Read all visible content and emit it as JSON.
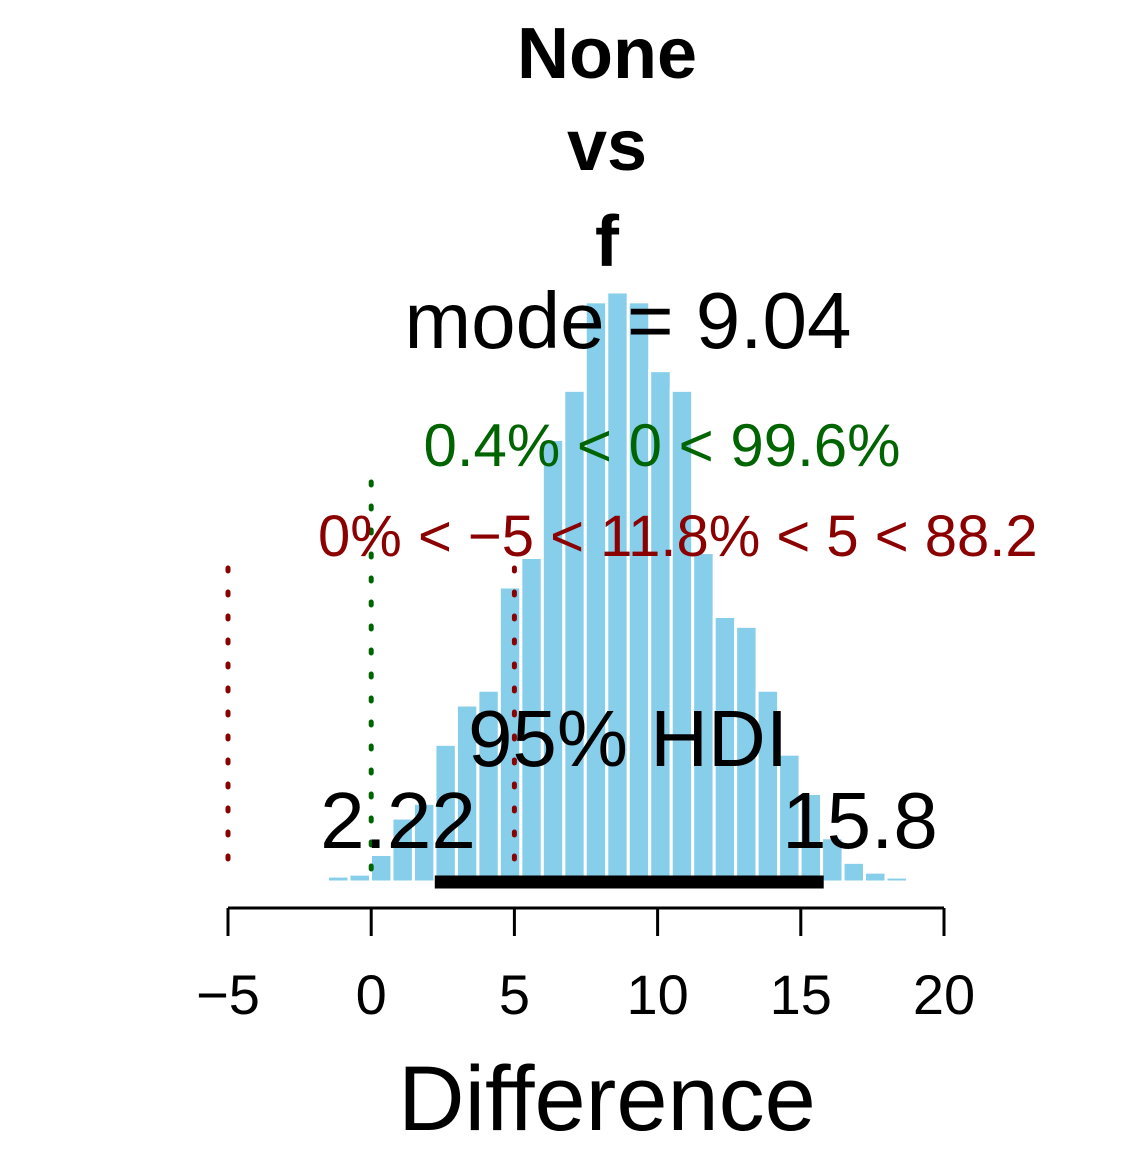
{
  "chart_data": {
    "type": "bar",
    "title_lines": [
      "None",
      "vs",
      "f"
    ],
    "mode_label": "mode = 9.04",
    "rope_zero_label": "0.4% < 0 < 99.6%",
    "rope_band_label": "0% < −5 < 11.8% < 5 < 88.2",
    "hdi_label": "95% HDI",
    "hdi_low_label": "2.22",
    "hdi_high_label": "15.8",
    "hdi": [
      2.22,
      15.8
    ],
    "comp_val": 0,
    "rope": [
      -5,
      5
    ],
    "xlabel": "Difference",
    "xlim": [
      -5,
      20
    ],
    "xticks": [
      -5,
      0,
      5,
      10,
      15,
      20
    ],
    "xtick_labels": [
      "−5",
      "0",
      "5",
      "10",
      "15",
      "20"
    ],
    "bin_width": 0.75,
    "bin_centers": [
      -1.9,
      -1.15,
      -0.4,
      0.35,
      1.1,
      1.85,
      2.6,
      3.35,
      4.1,
      4.85,
      5.6,
      6.35,
      7.1,
      7.85,
      8.6,
      9.35,
      10.1,
      10.85,
      11.6,
      12.35,
      13.1,
      13.85,
      14.6,
      15.35,
      16.1,
      16.85,
      17.6,
      18.35,
      19.1
    ],
    "values": [
      0.2,
      0.6,
      0.8,
      2.8,
      6.5,
      8.0,
      14.0,
      18.0,
      19.5,
      30.0,
      33.0,
      45.0,
      50.0,
      59.0,
      60.0,
      59.0,
      52.0,
      50.0,
      33.5,
      27.0,
      26.0,
      19.5,
      13.0,
      9.0,
      4.5,
      2.0,
      1.0,
      0.5,
      0.2
    ],
    "colors": {
      "bar": "#87CEEB",
      "hdi": "#000000",
      "comp": "#006400",
      "rope": "#8B0000"
    }
  }
}
